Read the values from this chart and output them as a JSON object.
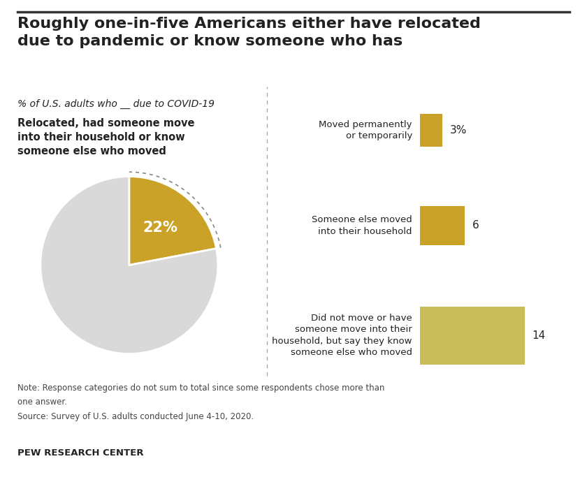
{
  "title": "Roughly one-in-five Americans either have relocated\ndue to pandemic or know someone who has",
  "subtitle": "% of U.S. adults who __ due to COVID-19",
  "pie_label": "Relocated, had someone move\ninto their household or know\nsomeone else who moved",
  "pie_value": 22,
  "pie_remainder": 78,
  "pie_color": "#C9A227",
  "pie_remainder_color": "#D9D9D9",
  "bar_labels": [
    "Moved permanently\nor temporarily",
    "Someone else moved\ninto their household",
    "Did not move or have\nsomeone move into their\nhousehold, but say they know\nsomeone else who moved"
  ],
  "bar_values": [
    3,
    6,
    14
  ],
  "bar_colors": [
    "#C9A227",
    "#C9A227",
    "#C9BC5A"
  ],
  "bar_value_labels": [
    "3%",
    "6",
    "14"
  ],
  "note_line1": "Note: Response categories do not sum to total since some respondents chose more than",
  "note_line2": "one answer.",
  "note_line3": "Source: Survey of U.S. adults conducted June 4-10, 2020.",
  "source_label": "PEW RESEARCH CENTER",
  "background_color": "#FFFFFF",
  "text_color": "#222222",
  "divider_color": "#AAAAAA",
  "border_color": "#333333"
}
